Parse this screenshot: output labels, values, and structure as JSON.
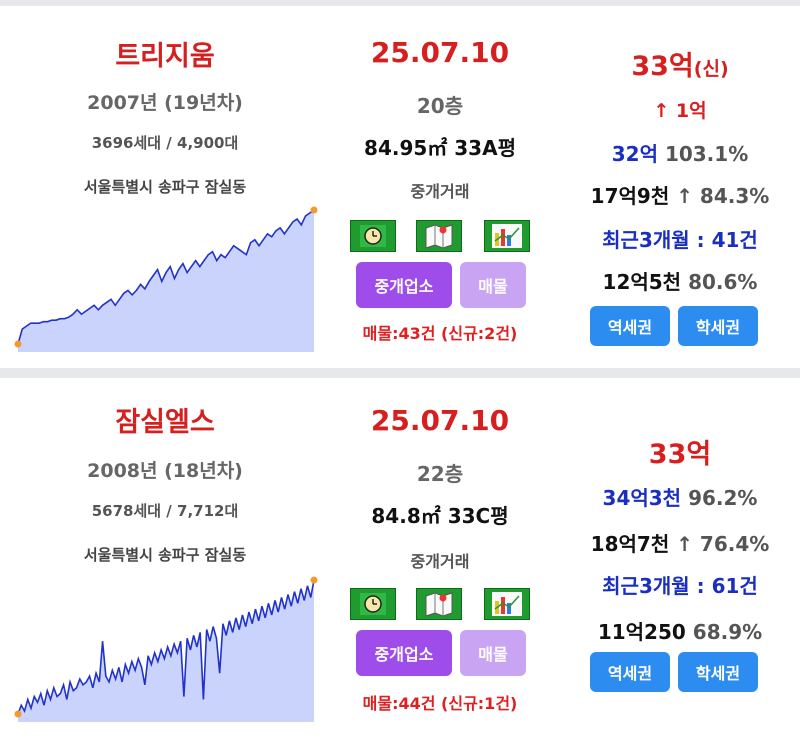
{
  "cards": [
    {
      "name": "트리지움",
      "year": "2007년 (19년차)",
      "units": "3696세대 / 4,900대",
      "address": "서울특별시 송파구 잠실동",
      "date": "25.07.10",
      "floor": "20층",
      "area": "84.95㎡ 33A평",
      "deal_type": "중개거래",
      "broker_label": "중개업소",
      "listing_label": "매물",
      "listing_count": "매물:43건 (신규:2건)",
      "price_main": "33억",
      "price_tag": "(신)",
      "change": "↑ 1억",
      "stat1_value": "32억",
      "stat1_pct": "103.1%",
      "stat2_value": "17억9천",
      "stat2_pct": "↑ 84.3%",
      "recent": "최근3개월 : 41건",
      "stat3_value": "12억5천",
      "stat3_pct": "80.6%",
      "station_label": "역세권",
      "school_label": "학세권",
      "chart_data": {
        "type": "area",
        "color": "#2233cc",
        "fill": "#c9d3fb",
        "values": [
          10,
          20,
          22,
          24,
          24,
          24,
          25,
          25,
          26,
          26,
          27,
          27,
          28,
          30,
          33,
          30,
          32,
          34,
          36,
          33,
          36,
          38,
          40,
          36,
          40,
          44,
          46,
          43,
          46,
          50,
          47,
          52,
          56,
          60,
          52,
          58,
          62,
          54,
          60,
          64,
          58,
          62,
          66,
          62,
          66,
          70,
          72,
          66,
          70,
          68,
          72,
          76,
          74,
          72,
          70,
          78,
          80,
          76,
          80,
          84,
          82,
          86,
          88,
          84,
          88,
          92,
          94,
          90,
          96,
          98,
          100
        ]
      }
    },
    {
      "name": "잠실엘스",
      "year": "2008년 (18년차)",
      "units": "5678세대 / 7,712대",
      "address": "서울특별시 송파구 잠실동",
      "date": "25.07.10",
      "floor": "22층",
      "area": "84.8㎡ 33C평",
      "deal_type": "중개거래",
      "broker_label": "중개업소",
      "listing_label": "매물",
      "listing_count": "매물:44건 (신규:1건)",
      "price_main": "33억",
      "price_tag": "",
      "change": "",
      "stat1_value": "34억3천",
      "stat1_pct": "96.2%",
      "stat2_value": "18억7천",
      "stat2_pct": "↑ 76.4%",
      "recent": "최근3개월 : 61건",
      "stat3_value": "11억250",
      "stat3_pct": "68.9%",
      "station_label": "역세권",
      "school_label": "학세권",
      "chart_data": {
        "type": "area",
        "color": "#2233cc",
        "fill": "#c9d3fb",
        "values": [
          8,
          14,
          10,
          18,
          12,
          20,
          16,
          22,
          14,
          24,
          18,
          26,
          20,
          22,
          28,
          18,
          30,
          24,
          26,
          32,
          28,
          30,
          34,
          26,
          36,
          30,
          58,
          34,
          30,
          38,
          32,
          40,
          30,
          42,
          36,
          44,
          38,
          46,
          40,
          28,
          48,
          42,
          50,
          44,
          52,
          46,
          54,
          48,
          56,
          50,
          58,
          20,
          60,
          52,
          62,
          54,
          64,
          18,
          66,
          58,
          68,
          60,
          36,
          70,
          62,
          72,
          64,
          74,
          66,
          76,
          68,
          78,
          70,
          80,
          72,
          82,
          74,
          84,
          76,
          86,
          78,
          88,
          80,
          90,
          82,
          92,
          84,
          94,
          86,
          96,
          88,
          100
        ]
      }
    }
  ],
  "icons": [
    "clock-icon",
    "map-icon",
    "bar-chart-icon"
  ]
}
